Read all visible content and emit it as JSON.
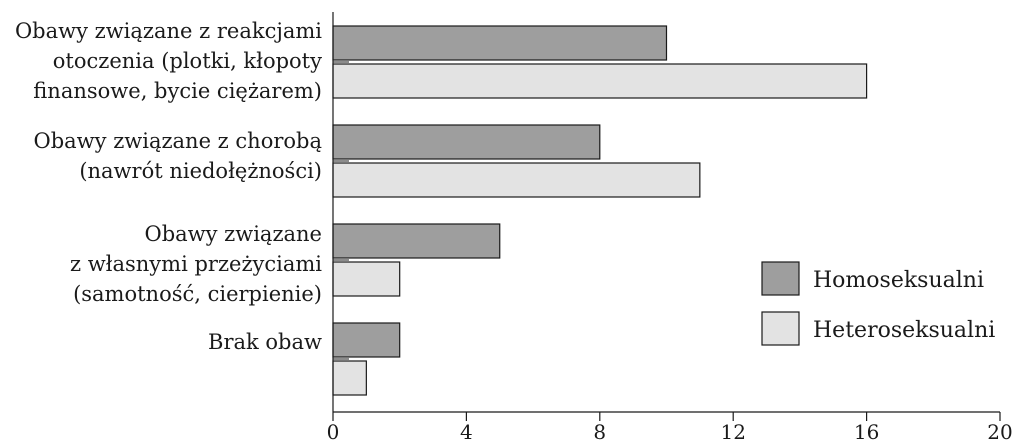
{
  "chart_data": {
    "type": "bar",
    "orientation": "horizontal",
    "categories": [
      [
        "Obawy związane z reakcjami",
        "otoczenia (plotki, kłopoty",
        "finansowe, bycie ciężarem)"
      ],
      [
        "Obawy związane z chorobą",
        "(nawrót niedołężności)"
      ],
      [
        "Obawy związane",
        "z własnymi przeżyciami",
        "(samotność, cierpienie)"
      ],
      [
        "Brak obaw"
      ]
    ],
    "series": [
      {
        "name": "Homoseksualni",
        "values": [
          10,
          8,
          5,
          2
        ],
        "color": "#9e9e9e"
      },
      {
        "name": "Heteroseksualni",
        "values": [
          16,
          11,
          2,
          1
        ],
        "color": "#e3e3e3"
      }
    ],
    "xlim": [
      0,
      20
    ],
    "xticks": [
      0,
      4,
      8,
      12,
      16,
      20
    ],
    "grid": false,
    "legend_position": "right"
  }
}
